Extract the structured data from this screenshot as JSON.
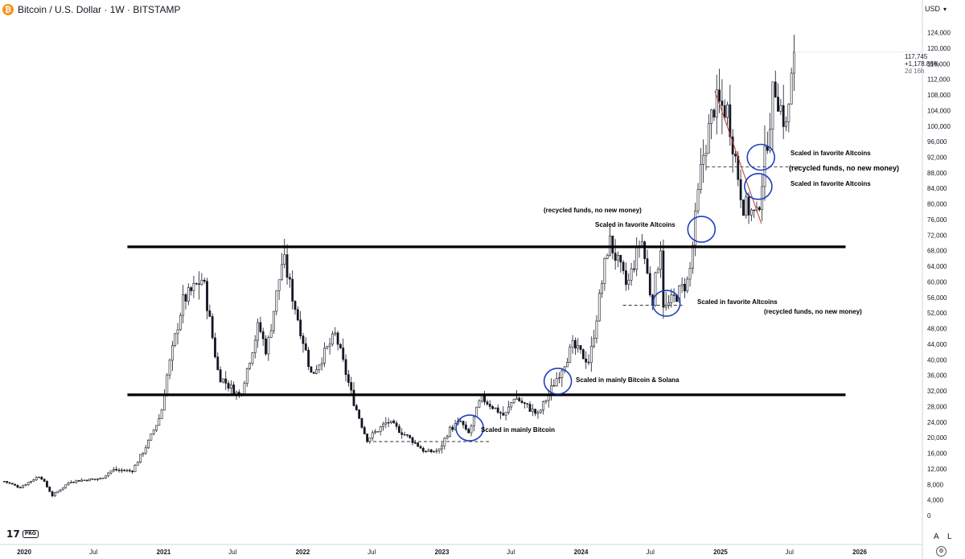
{
  "header": {
    "coin_glyph": "₿",
    "symbol": "Bitcoin / U.S. Dollar · 1W · BITSTAMP"
  },
  "currency": {
    "label": "USD",
    "caret": "▾"
  },
  "current_price": {
    "price": "117,745",
    "change": "+1,178.86%",
    "countdown": "2d 16h"
  },
  "logo": {
    "text": "17",
    "badge": "PRO"
  },
  "scale_buttons": {
    "auto": "A",
    "log": "L"
  },
  "annotations": [
    {
      "text": "Scaled in mainly Bitcoin",
      "size": "normal"
    },
    {
      "text": "Scaled in mainly Bitcoin & Solana",
      "size": "normal"
    },
    {
      "text": "(recycled funds, no new money)",
      "size": "normal"
    },
    {
      "text": "Scaled in favorite Altcoins",
      "size": "normal"
    },
    {
      "text": "Scaled in favorite Altcoins",
      "size": "normal"
    },
    {
      "text": "(recycled funds, no new money)",
      "size": "normal"
    },
    {
      "text": "Scaled in favorite Altcoins",
      "size": "normal"
    },
    {
      "text": "(recycled funds, no new money)",
      "size": "large"
    },
    {
      "text": "Scaled in favorite Altcoins",
      "size": "normal"
    }
  ],
  "colors": {
    "candle": "#131722",
    "background": "#ffffff",
    "level_line": "#000000",
    "trendline": "#c0392b",
    "circle": "#1f3fbf",
    "coin": "#f7931a"
  },
  "chart_data": {
    "type": "candlestick",
    "title": "Bitcoin / U.S. Dollar · 1W · BITSTAMP",
    "ylim": [
      0,
      126000
    ],
    "y_ticks": [
      0,
      4000,
      8000,
      12000,
      16000,
      20000,
      24000,
      28000,
      32000,
      36000,
      40000,
      44000,
      48000,
      52000,
      56000,
      60000,
      64000,
      68000,
      72000,
      76000,
      80000,
      84000,
      88000,
      92000,
      96000,
      100000,
      104000,
      108000,
      112000,
      116000,
      120000,
      124000
    ],
    "y_tick_labels": [
      "0",
      "4,000",
      "8,000",
      "12,000",
      "16,000",
      "20,000",
      "24,000",
      "28,000",
      "32,000",
      "36,000",
      "40,000",
      "44,000",
      "48,000",
      "52,000",
      "56,000",
      "60,000",
      "64,000",
      "68,000",
      "72,000",
      "76,000",
      "80,000",
      "84,000",
      "88,000",
      "92,000",
      "96,000",
      "100,000",
      "104,000",
      "108,000",
      "112,000",
      "116,000",
      "120,000",
      "124,000"
    ],
    "x_ticks": [
      {
        "label": "2020",
        "date": "2020-01-01"
      },
      {
        "label": "Jul",
        "date": "2020-07-01"
      },
      {
        "label": "2021",
        "date": "2021-01-01"
      },
      {
        "label": "Jul",
        "date": "2021-07-01"
      },
      {
        "label": "2022",
        "date": "2022-01-01"
      },
      {
        "label": "Jul",
        "date": "2022-07-01"
      },
      {
        "label": "2023",
        "date": "2023-01-01"
      },
      {
        "label": "Jul",
        "date": "2023-07-01"
      },
      {
        "label": "2024",
        "date": "2024-01-01"
      },
      {
        "label": "Jul",
        "date": "2024-07-01"
      },
      {
        "label": "2025",
        "date": "2025-01-01"
      },
      {
        "label": "Jul",
        "date": "2025-07-01"
      },
      {
        "label": "2026",
        "date": "2026-01-01"
      }
    ],
    "x_range": [
      "2019-11-10",
      "2026-02-15"
    ],
    "price_path": [
      [
        "2019-11-10",
        8800
      ],
      [
        "2019-12-20",
        7200
      ],
      [
        "2020-02-12",
        10300
      ],
      [
        "2020-03-15",
        5100
      ],
      [
        "2020-05-01",
        8800
      ],
      [
        "2020-07-20",
        9500
      ],
      [
        "2020-08-20",
        11800
      ],
      [
        "2020-10-10",
        11400
      ],
      [
        "2020-11-20",
        18500
      ],
      [
        "2020-12-25",
        26000
      ],
      [
        "2021-01-10",
        36000
      ],
      [
        "2021-02-20",
        55000
      ],
      [
        "2021-04-14",
        61000
      ],
      [
        "2021-05-25",
        36000
      ],
      [
        "2021-07-20",
        30500
      ],
      [
        "2021-09-07",
        49000
      ],
      [
        "2021-09-28",
        42000
      ],
      [
        "2021-11-10",
        66500
      ],
      [
        "2022-01-24",
        36000
      ],
      [
        "2022-03-28",
        46500
      ],
      [
        "2022-05-12",
        30000
      ],
      [
        "2022-06-18",
        19500
      ],
      [
        "2022-08-12",
        24200
      ],
      [
        "2022-10-15",
        19300
      ],
      [
        "2022-11-20",
        16200
      ],
      [
        "2022-12-25",
        16800
      ],
      [
        "2023-01-20",
        22000
      ],
      [
        "2023-02-20",
        24200
      ],
      [
        "2023-03-10",
        20500
      ],
      [
        "2023-04-14",
        30300
      ],
      [
        "2023-06-15",
        25500
      ],
      [
        "2023-07-10",
        30600
      ],
      [
        "2023-09-10",
        25800
      ],
      [
        "2023-10-25",
        34500
      ],
      [
        "2023-12-10",
        43500
      ],
      [
        "2024-01-23",
        39500
      ],
      [
        "2024-03-14",
        71000
      ],
      [
        "2024-05-01",
        58500
      ],
      [
        "2024-06-07",
        71500
      ],
      [
        "2024-07-05",
        54500
      ],
      [
        "2024-07-28",
        69500
      ],
      [
        "2024-08-05",
        52500
      ],
      [
        "2024-10-10",
        60500
      ],
      [
        "2024-11-13",
        91000
      ],
      [
        "2024-12-17",
        106000
      ],
      [
        "2025-01-20",
        104000
      ],
      [
        "2025-02-28",
        80000
      ],
      [
        "2025-04-07",
        76500
      ],
      [
        "2025-05-12",
        103000
      ],
      [
        "2025-05-22",
        111000
      ],
      [
        "2025-06-22",
        99500
      ],
      [
        "2025-07-14",
        119000
      ]
    ],
    "horizontal_levels": [
      31000,
      69000
    ],
    "dashed_levels": [
      {
        "value": 19000,
        "from": "2022-06-20",
        "to": "2023-05-10"
      },
      {
        "value": 54000,
        "from": "2024-04-20",
        "to": "2024-09-28"
      },
      {
        "value": 89500,
        "from": "2024-11-25",
        "to": "2025-07-30"
      }
    ],
    "trendline": {
      "from": [
        "2024-12-17",
        109000
      ],
      "to": [
        "2025-04-18",
        75000
      ]
    },
    "circles": [
      {
        "date": "2023-03-15",
        "value": 22500
      },
      {
        "date": "2023-11-01",
        "value": 34500
      },
      {
        "date": "2024-08-12",
        "value": 54500
      },
      {
        "date": "2024-11-12",
        "value": 73500
      },
      {
        "date": "2025-04-10",
        "value": 84500
      },
      {
        "date": "2025-04-17",
        "value": 92000
      }
    ]
  }
}
